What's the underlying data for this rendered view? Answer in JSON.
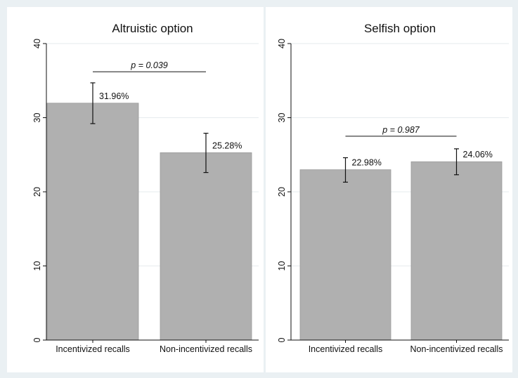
{
  "chart_data": [
    {
      "type": "bar",
      "title": "Altruistic option",
      "categories": [
        "Incentivized recalls",
        "Non-incentivized recalls"
      ],
      "values": [
        31.96,
        25.28
      ],
      "value_labels": [
        "31.96%",
        "25.28%"
      ],
      "error_bars": [
        [
          29.2,
          34.7
        ],
        [
          22.6,
          27.9
        ]
      ],
      "ylim": [
        0,
        40
      ],
      "yticks": [
        0,
        10,
        20,
        30,
        40
      ],
      "ytick_labels": [
        "0",
        "10",
        "20",
        "30",
        "40"
      ],
      "annotation": {
        "text": "p = 0.039",
        "y": 36.2
      },
      "bar_color": "#b0b0b0",
      "grid": true
    },
    {
      "type": "bar",
      "title": "Selfish option",
      "categories": [
        "Incentivized recalls",
        "Non-incentivized recalls"
      ],
      "values": [
        22.98,
        24.06
      ],
      "value_labels": [
        "22.98%",
        "24.06%"
      ],
      "error_bars": [
        [
          21.3,
          24.6
        ],
        [
          22.3,
          25.8
        ]
      ],
      "ylim": [
        0,
        40
      ],
      "yticks": [
        0,
        10,
        20,
        30,
        40
      ],
      "ytick_labels": [
        "0",
        "10",
        "20",
        "30",
        "40"
      ],
      "annotation": {
        "text": "p = 0.987",
        "y": 27.5
      },
      "bar_color": "#b0b0b0",
      "grid": true
    }
  ],
  "colors": {
    "outer_background": "#eaf0f3",
    "panel_background": "#ffffff",
    "grid": "#e6ebee",
    "bar": "#b0b0b0",
    "bar_edge": "#9a9a9a",
    "ink": "#111111"
  }
}
